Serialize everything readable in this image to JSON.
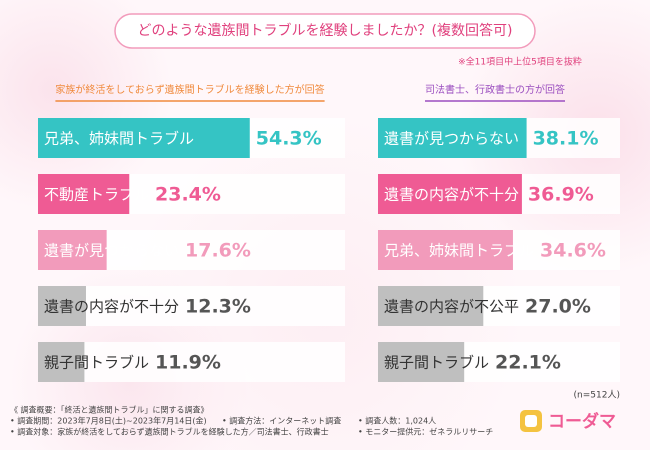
{
  "header": {
    "title": "どのような遺族間トラブルを経験しましたか？(複数回答可)",
    "note": "※全11項目中上位5項目を抜粋",
    "sample_size": "(n=512人)"
  },
  "chart_data": [
    {
      "type": "bar",
      "subtitle": "家族が終活をしておらず遺族間トラブルを経験した方が回答",
      "subtitle_color": "#f08a3c",
      "categories": [
        "兄弟、姉妹間トラブル",
        "不動産トラブル",
        "遺書が見つからない",
        "遺書の内容が不十分",
        "親子間トラブル"
      ],
      "values": [
        54.3,
        23.4,
        17.6,
        12.3,
        11.9
      ],
      "value_labels": [
        "54.3%",
        "23.4%",
        "17.6%",
        "12.3%",
        "11.9%"
      ],
      "colors": [
        "#35c4c4",
        "#ef5b94",
        "#f29bbb",
        "#bfbfbf",
        "#bfbfbf"
      ]
    },
    {
      "type": "bar",
      "subtitle": "司法書士、行政書士の方が回答",
      "subtitle_color": "#9b4fc0",
      "categories": [
        "遺書が見つからない",
        "遺書の内容が不十分",
        "兄弟、姉妹間トラブル",
        "遺書の内容が不公平",
        "親子間トラブル"
      ],
      "values": [
        38.1,
        36.9,
        34.6,
        27.0,
        22.1
      ],
      "value_labels": [
        "38.1%",
        "36.9%",
        "34.6%",
        "27.0%",
        "22.1%"
      ],
      "colors": [
        "#35c4c4",
        "#ef5b94",
        "#f29bbb",
        "#bfbfbf",
        "#bfbfbf"
      ]
    }
  ],
  "footer": {
    "survey_title": "《 調査概要：「終活と遺族間トラブル」に関する調査》",
    "items": [
      "• 調査期間：2023年7月8日(土)~2023年7月14日(金)",
      "• 調査方法：インターネット調査",
      "• 調査人数：1,024人",
      "• 調査対象：家族が終活をしておらず遺族間トラブルを経験した方／司法書士、行政書士",
      "• モニター提供元：ゼネラルリサーチ"
    ],
    "logo": "コーダマ"
  }
}
